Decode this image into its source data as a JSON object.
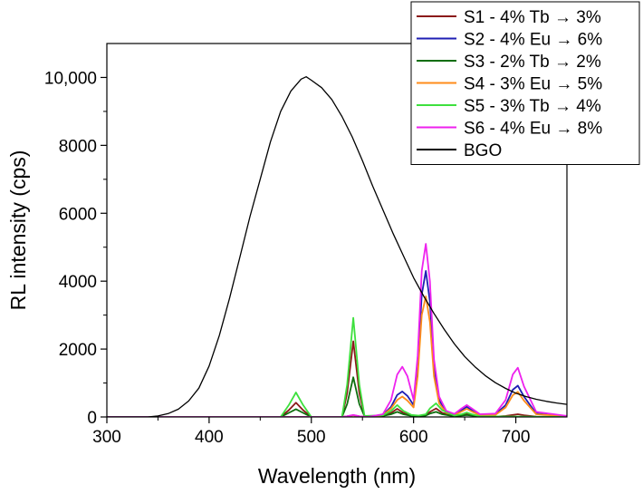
{
  "chart_data": {
    "type": "line",
    "xlabel": "Wavelength (nm)",
    "ylabel": "RL intensity (cps)",
    "xlim": [
      300,
      750
    ],
    "ylim": [
      0,
      11000
    ],
    "x_ticks": [
      {
        "value": 300,
        "label": "300"
      },
      {
        "value": 400,
        "label": "400"
      },
      {
        "value": 500,
        "label": "500"
      },
      {
        "value": 600,
        "label": "600"
      },
      {
        "value": 700,
        "label": "700"
      }
    ],
    "y_ticks": [
      {
        "value": 0,
        "label": "0"
      },
      {
        "value": 2000,
        "label": "2000"
      },
      {
        "value": 4000,
        "label": "4000"
      },
      {
        "value": 6000,
        "label": "6000"
      },
      {
        "value": 8000,
        "label": "8000"
      },
      {
        "value": 10000,
        "label": "10,000"
      }
    ],
    "grid": false,
    "legend_position": "top-right",
    "series": [
      {
        "name": "S1 - 4% Tb → 3%",
        "color": "#8b1a1a",
        "x": [
          300,
          470,
          478,
          485,
          492,
          500,
          530,
          535,
          541,
          547,
          552,
          570,
          578,
          584,
          590,
          598,
          605,
          612,
          616,
          622,
          628,
          640,
          647,
          652,
          657,
          665,
          680,
          690,
          697,
          702,
          708,
          720,
          750
        ],
        "y": [
          0,
          0,
          200,
          420,
          200,
          0,
          0,
          700,
          2230,
          700,
          20,
          40,
          120,
          240,
          120,
          50,
          30,
          60,
          150,
          250,
          120,
          30,
          60,
          90,
          60,
          20,
          10,
          30,
          60,
          80,
          50,
          10,
          0
        ]
      },
      {
        "name": "S2 - 4% Eu → 6%",
        "color": "#1f1fb4",
        "x": [
          300,
          530,
          535,
          541,
          547,
          555,
          570,
          578,
          584,
          589,
          594,
          600,
          604,
          608,
          612,
          616,
          620,
          625,
          632,
          640,
          647,
          652,
          657,
          665,
          680,
          690,
          697,
          702,
          708,
          720,
          750
        ],
        "y": [
          0,
          0,
          20,
          50,
          20,
          0,
          60,
          300,
          650,
          750,
          620,
          350,
          1500,
          3600,
          4300,
          3400,
          1500,
          500,
          150,
          80,
          200,
          300,
          200,
          60,
          80,
          350,
          800,
          920,
          600,
          100,
          20
        ]
      },
      {
        "name": "S3 - 2% Tb → 2%",
        "color": "#0d6e0d",
        "x": [
          300,
          470,
          478,
          485,
          492,
          500,
          530,
          535,
          541,
          547,
          552,
          570,
          578,
          584,
          590,
          598,
          605,
          612,
          616,
          622,
          628,
          640,
          647,
          652,
          657,
          665,
          750
        ],
        "y": [
          0,
          0,
          120,
          230,
          120,
          0,
          0,
          380,
          1170,
          380,
          20,
          30,
          80,
          150,
          80,
          30,
          20,
          40,
          100,
          150,
          80,
          20,
          40,
          60,
          40,
          10,
          0
        ]
      },
      {
        "name": "S4 - 3% Eu → 5%",
        "color": "#ff8c1a",
        "x": [
          300,
          530,
          535,
          541,
          547,
          555,
          570,
          578,
          584,
          589,
          594,
          600,
          604,
          608,
          612,
          616,
          620,
          625,
          632,
          640,
          647,
          652,
          657,
          665,
          680,
          690,
          697,
          702,
          708,
          720,
          750
        ],
        "y": [
          0,
          0,
          20,
          50,
          20,
          0,
          50,
          250,
          500,
          600,
          480,
          280,
          1200,
          3000,
          3550,
          2800,
          1200,
          400,
          120,
          60,
          160,
          240,
          160,
          50,
          60,
          280,
          640,
          740,
          480,
          80,
          15
        ]
      },
      {
        "name": "S5 - 3% Tb → 4%",
        "color": "#3ee03e",
        "x": [
          300,
          470,
          478,
          485,
          492,
          500,
          530,
          535,
          541,
          547,
          552,
          570,
          578,
          584,
          590,
          598,
          605,
          612,
          616,
          622,
          628,
          640,
          647,
          652,
          657,
          665,
          750
        ],
        "y": [
          0,
          0,
          350,
          720,
          350,
          0,
          0,
          950,
          2920,
          950,
          30,
          50,
          180,
          350,
          180,
          60,
          40,
          80,
          250,
          400,
          200,
          40,
          80,
          130,
          80,
          20,
          0
        ]
      },
      {
        "name": "S6 - 4% Eu → 8%",
        "color": "#ee22ee",
        "x": [
          300,
          530,
          535,
          541,
          547,
          555,
          570,
          578,
          584,
          589,
          594,
          600,
          604,
          608,
          612,
          616,
          620,
          625,
          632,
          640,
          647,
          652,
          657,
          665,
          680,
          690,
          697,
          702,
          708,
          720,
          750
        ],
        "y": [
          0,
          0,
          20,
          60,
          20,
          0,
          80,
          500,
          1250,
          1480,
          1200,
          500,
          1800,
          4300,
          5100,
          4000,
          1700,
          600,
          180,
          90,
          250,
          350,
          250,
          80,
          100,
          500,
          1250,
          1450,
          900,
          150,
          30
        ]
      },
      {
        "name": "BGO",
        "color": "#000000",
        "x": [
          300,
          340,
          350,
          360,
          370,
          380,
          390,
          400,
          410,
          420,
          430,
          440,
          450,
          460,
          470,
          480,
          490,
          495,
          500,
          510,
          520,
          530,
          540,
          550,
          560,
          570,
          580,
          590,
          600,
          610,
          620,
          630,
          640,
          650,
          660,
          670,
          680,
          690,
          700,
          710,
          720,
          730,
          740,
          750
        ],
        "y": [
          0,
          0,
          30,
          100,
          230,
          470,
          850,
          1500,
          2400,
          3500,
          4700,
          5900,
          7000,
          8100,
          9000,
          9600,
          9950,
          10020,
          9920,
          9700,
          9350,
          8850,
          8250,
          7550,
          6800,
          6100,
          5400,
          4750,
          4100,
          3550,
          3050,
          2580,
          2150,
          1780,
          1480,
          1220,
          1010,
          840,
          700,
          600,
          520,
          460,
          410,
          370
        ]
      }
    ]
  }
}
